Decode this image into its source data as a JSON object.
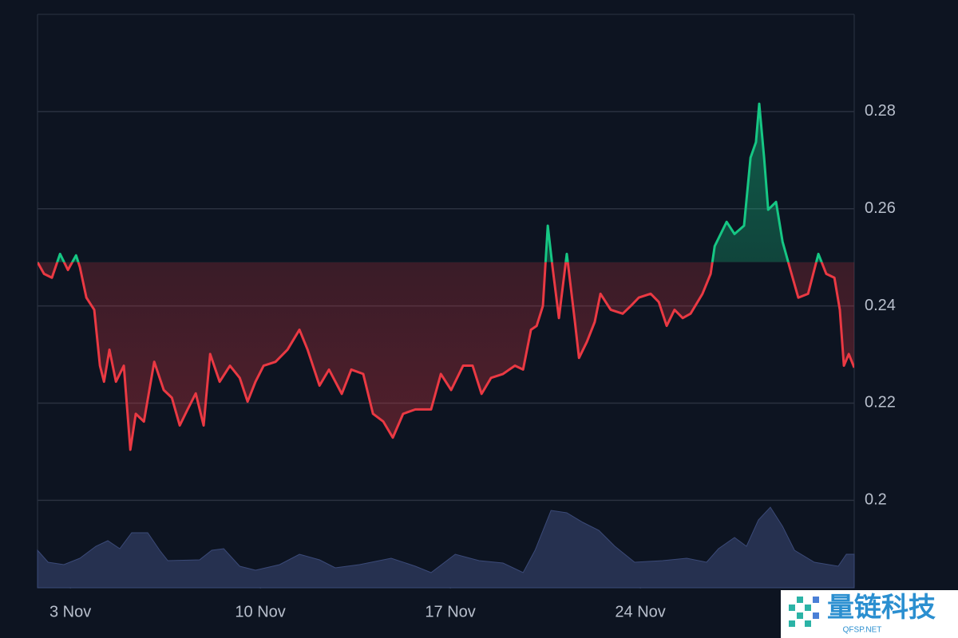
{
  "chart_data": {
    "type": "line",
    "x": [
      1.79,
      2.03,
      2.32,
      2.62,
      2.91,
      3.21,
      3.35,
      3.59,
      3.88,
      4.09,
      4.24,
      4.44,
      4.68,
      4.97,
      5.21,
      5.41,
      5.71,
      6.09,
      6.44,
      6.74,
      7.03,
      7.32,
      7.62,
      7.91,
      8.15,
      8.5,
      8.88,
      9.24,
      9.53,
      9.82,
      10.12,
      10.56,
      11.0,
      11.44,
      11.74,
      12.18,
      12.53,
      13.0,
      13.35,
      13.79,
      14.15,
      14.53,
      14.88,
      15.26,
      15.71,
      16.29,
      16.65,
      17.03,
      17.47,
      17.82,
      18.15,
      18.5,
      18.94,
      19.38,
      19.68,
      19.97,
      20.18,
      20.41,
      20.59,
      20.76,
      21.0,
      21.29,
      21.59,
      21.74,
      22.03,
      22.32,
      22.53,
      22.91,
      23.35,
      23.65,
      23.94,
      24.38,
      24.68,
      24.97,
      25.26,
      25.56,
      25.85,
      26.29,
      26.59,
      26.74,
      27.18,
      27.47,
      27.82,
      28.06,
      28.26,
      28.38,
      28.56,
      28.71,
      29.0,
      29.24,
      29.53,
      29.82,
      30.18,
      30.56,
      30.85,
      31.15,
      31.35,
      31.5,
      31.68,
      31.88
    ],
    "series": [
      {
        "values": [
          0.249,
          0.2466,
          0.2458,
          0.2507,
          0.2474,
          0.2504,
          0.248,
          0.2417,
          0.2392,
          0.2277,
          0.2244,
          0.231,
          0.2244,
          0.2277,
          0.2104,
          0.2178,
          0.2162,
          0.2285,
          0.2227,
          0.2211,
          0.2154,
          0.2187,
          0.222,
          0.2154,
          0.2301,
          0.2244,
          0.2277,
          0.2252,
          0.2203,
          0.2244,
          0.2277,
          0.2285,
          0.231,
          0.2351,
          0.231,
          0.2236,
          0.2269,
          0.2219,
          0.2269,
          0.226,
          0.2178,
          0.2162,
          0.2129,
          0.2178,
          0.2187,
          0.2187,
          0.226,
          0.2227,
          0.2277,
          0.2277,
          0.2219,
          0.2252,
          0.226,
          0.2277,
          0.2269,
          0.2351,
          0.2359,
          0.24,
          0.2565,
          0.2482,
          0.2375,
          0.2507,
          0.2367,
          0.2293,
          0.2326,
          0.2367,
          0.2425,
          0.2392,
          0.2384,
          0.24,
          0.2417,
          0.2425,
          0.2408,
          0.2359,
          0.2392,
          0.2375,
          0.2384,
          0.2425,
          0.2466,
          0.2523,
          0.2573,
          0.2548,
          0.2565,
          0.2705,
          0.2737,
          0.2816,
          0.2705,
          0.2598,
          0.2614,
          0.2532,
          0.2474,
          0.2417,
          0.2425,
          0.2507,
          0.2466,
          0.2458,
          0.2392,
          0.2277,
          0.2301,
          0.2273
        ],
        "up_color": "#16c784",
        "down_color": "#ea3943"
      }
    ],
    "baseline": 0.249,
    "volume": {
      "type": "area",
      "color": "#2b3658",
      "axis": "y2",
      "x": [
        1.79,
        2.18,
        2.76,
        3.35,
        3.94,
        4.38,
        4.82,
        5.26,
        5.85,
        6.29,
        6.59,
        7.76,
        8.21,
        8.65,
        9.24,
        9.82,
        10.71,
        11.44,
        12.18,
        12.76,
        13.65,
        14.82,
        15.71,
        16.29,
        17.18,
        18.06,
        18.94,
        19.68,
        20.12,
        20.71,
        21.29,
        21.88,
        22.47,
        23.06,
        23.79,
        24.82,
        25.71,
        26.44,
        26.88,
        27.47,
        27.91,
        28.35,
        28.79,
        29.24,
        29.68,
        30.41,
        31.29,
        31.59,
        31.88
      ],
      "values": [
        47,
        32,
        29,
        37,
        52,
        59,
        49,
        69,
        69,
        47,
        34,
        35,
        47,
        49,
        27,
        22,
        29,
        42,
        35,
        25,
        29,
        37,
        27,
        19,
        42,
        34,
        31,
        19,
        47,
        97,
        94,
        82,
        72,
        52,
        32,
        34,
        37,
        32,
        49,
        63,
        52,
        85,
        101,
        77,
        47,
        32,
        27,
        42,
        42
      ]
    },
    "xlim": [
      1.79,
      31.88
    ],
    "xticks": [
      {
        "value": 3,
        "label": "3 Nov"
      },
      {
        "value": 10,
        "label": "10 Nov"
      },
      {
        "value": 17,
        "label": "17 Nov"
      },
      {
        "value": 24,
        "label": "24 Nov"
      }
    ],
    "ylim": [
      0.182,
      0.3
    ],
    "yticks": [
      0.2,
      0.22,
      0.24,
      0.26,
      0.28
    ],
    "y2lim": [
      0,
      110
    ],
    "grid": true
  },
  "watermark": {
    "title": "量链科技",
    "subtitle": "QFSP.NET"
  }
}
